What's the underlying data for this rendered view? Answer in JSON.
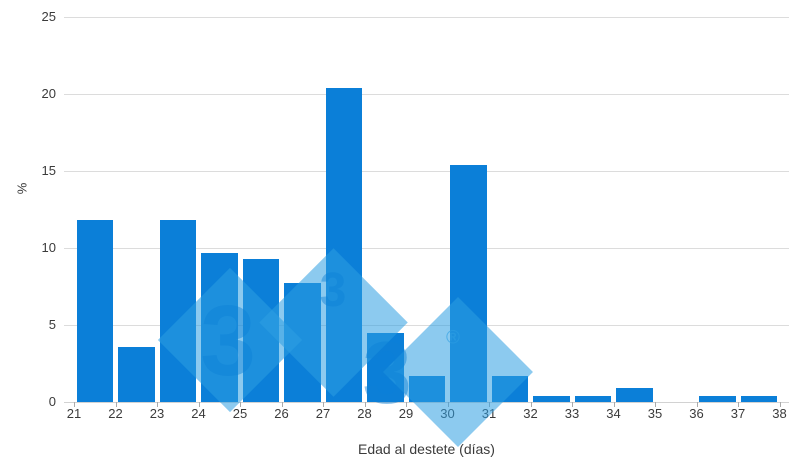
{
  "chart_data": {
    "type": "bar",
    "title": "",
    "xlabel": "Edad al destete (días)",
    "ylabel": "%",
    "categories": [
      21,
      22,
      23,
      24,
      25,
      26,
      27,
      28,
      29,
      30,
      31,
      32,
      33,
      34,
      35,
      36,
      37
    ],
    "values": [
      11.8,
      3.6,
      11.8,
      9.7,
      9.3,
      7.7,
      20.4,
      4.5,
      1.7,
      15.4,
      1.7,
      0.4,
      0.4,
      0.9,
      0,
      0.4,
      0.4
    ],
    "x_tick_labels": [
      "21",
      "22",
      "23",
      "24",
      "25",
      "26",
      "27",
      "28",
      "29",
      "30",
      "31",
      "32",
      "33",
      "34",
      "35",
      "36",
      "37",
      "38"
    ],
    "y_ticks": [
      0,
      5,
      10,
      15,
      20,
      25
    ],
    "ylim": [
      0,
      25
    ],
    "grid": "horizontal",
    "legend": "none",
    "histogram_bins": "each bar spans one day between consecutive x ticks",
    "watermark_text": "3 3 3 ®",
    "colors": {
      "bar": "#0b7fd8",
      "grid": "#dcdcdc",
      "axis_line": "#d2d2d2",
      "tick": "#ababab",
      "text": "#3b3b3b",
      "watermark": "#2d9fe2"
    }
  }
}
